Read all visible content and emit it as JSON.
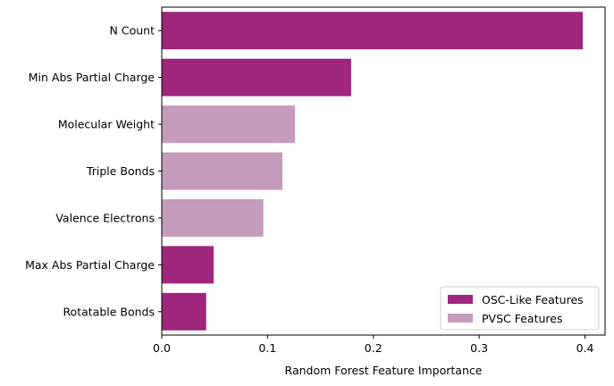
{
  "chart_data": {
    "type": "bar",
    "orientation": "horizontal",
    "categories": [
      "N Count",
      "Min Abs Partial Charge",
      "Molecular Weight",
      "Triple Bonds",
      "Valence Electrons",
      "Max Abs Partial Charge",
      "Rotatable Bonds"
    ],
    "values": [
      0.398,
      0.179,
      0.126,
      0.114,
      0.096,
      0.049,
      0.042
    ],
    "groups": [
      "OSC-Like Features",
      "OSC-Like Features",
      "PVSC Features",
      "PVSC Features",
      "PVSC Features",
      "OSC-Like Features",
      "OSC-Like Features"
    ],
    "xlabel": "Random Forest Feature Importance",
    "ylabel": "",
    "xlim": [
      0,
      0.419
    ],
    "xticks": [
      "0.0",
      "0.1",
      "0.2",
      "0.3",
      "0.4"
    ],
    "grid": false,
    "legend": {
      "placement": "bottom-right",
      "entries": [
        {
          "label": "OSC-Like Features",
          "color": "#9e267c"
        },
        {
          "label": "PVSC Features",
          "color": "#c49bbc"
        }
      ]
    }
  }
}
